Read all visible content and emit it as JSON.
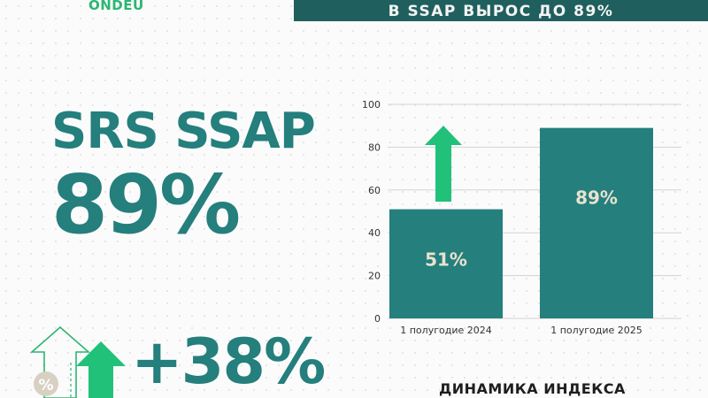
{
  "header": {
    "logo_text": "ONDEU",
    "banner_text": "В SSAP ВЫРОС ДО 89%"
  },
  "highlight": {
    "metric_name": "SRS SSAP",
    "metric_value": "89%",
    "growth_value": "+38%",
    "percent_badge": "%"
  },
  "colors": {
    "teal": "#247f7d",
    "dark_teal": "#1f5f5e",
    "green": "#22c17a",
    "bar_label": "#e8e2cf"
  },
  "icons": {
    "arrow": "up-arrow-icon",
    "outline_arrow": "outline-up-arrow-icon",
    "badge": "percent-badge-icon"
  },
  "chart_data": {
    "type": "bar",
    "title": "ДИНАМИКА ИНДЕКСА",
    "categories": [
      "1 полугодие 2024",
      "1 полугодие 2025"
    ],
    "values": [
      51,
      89
    ],
    "data_labels": [
      "51%",
      "89%"
    ],
    "ylim": [
      0,
      100
    ],
    "yticks": [
      0,
      20,
      40,
      60,
      80,
      100
    ],
    "grid": true,
    "bar_color": "#247f7d"
  }
}
